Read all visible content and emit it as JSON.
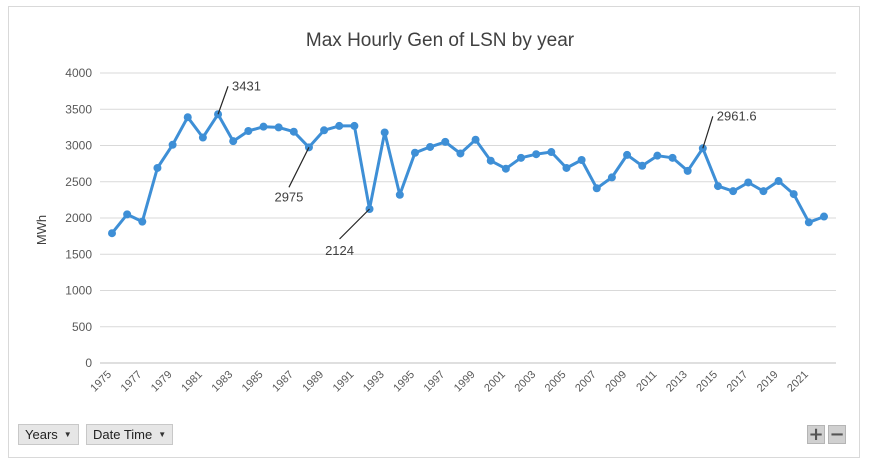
{
  "chart_data": {
    "type": "line",
    "title": "Max Hourly Gen of LSN by year",
    "xlabel": "",
    "ylabel": "MWh",
    "ylim": [
      0,
      4000
    ],
    "yticks": [
      0,
      500,
      1000,
      1500,
      2000,
      2500,
      3000,
      3500,
      4000
    ],
    "grid": true,
    "legend": "none",
    "x": [
      1975,
      1976,
      1977,
      1978,
      1979,
      1980,
      1981,
      1982,
      1983,
      1984,
      1985,
      1986,
      1987,
      1988,
      1989,
      1990,
      1991,
      1992,
      1993,
      1994,
      1995,
      1996,
      1997,
      1998,
      1999,
      2000,
      2001,
      2002,
      2003,
      2004,
      2005,
      2006,
      2007,
      2008,
      2009,
      2010,
      2011,
      2012,
      2013,
      2014,
      2015,
      2016,
      2017,
      2018,
      2019,
      2020,
      2021,
      2022
    ],
    "xtick_labels": [
      "1975",
      "1977",
      "1979",
      "1981",
      "1983",
      "1985",
      "1987",
      "1989",
      "1991",
      "1993",
      "1995",
      "1997",
      "1999",
      "2001",
      "2003",
      "2005",
      "2007",
      "2009",
      "2011",
      "2013",
      "2015",
      "2017",
      "2019",
      "2021"
    ],
    "series": [
      {
        "values": [
          1790,
          2050,
          1950,
          2690,
          3010,
          3390,
          3110,
          3431,
          3060,
          3200,
          3260,
          3250,
          3190,
          2975,
          3210,
          3270,
          3270,
          2124,
          3180,
          2320,
          2900,
          2980,
          3050,
          2890,
          3080,
          2790,
          2680,
          2830,
          2880,
          2910,
          2690,
          2800,
          2410,
          2560,
          2870,
          2720,
          2860,
          2830,
          2650,
          2961.6,
          2440,
          2370,
          2490,
          2370,
          2510,
          2330,
          1940,
          2020
        ],
        "color": "#3e8fd6"
      }
    ],
    "annotations": [
      {
        "x": 1982,
        "y": 3431,
        "text": "3431"
      },
      {
        "x": 1988,
        "y": 2975,
        "text": "2975"
      },
      {
        "x": 1992,
        "y": 2124,
        "text": "2124"
      },
      {
        "x": 2014,
        "y": 2961.6,
        "text": "2961.6"
      }
    ]
  },
  "controls": {
    "years_label": "Years",
    "datetime_label": "Date Time",
    "zoom_in": "+",
    "zoom_out": "−"
  }
}
